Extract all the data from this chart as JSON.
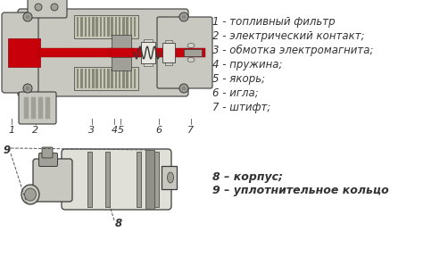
{
  "background_color": "#ffffff",
  "labels_right_top": [
    "1 - топливный фильтр",
    "2 - электрический контакт;",
    "3 - обмотка электромагнита;",
    "4 - пружина;",
    "5 - якорь;",
    "6 - игла;",
    "7 - штифт;"
  ],
  "labels_right_bottom": [
    "8 – корпус;",
    "9 – уплотнительное кольцо"
  ],
  "font_size": 8.5,
  "text_color": "#333333",
  "body_gray": "#c8c8c0",
  "body_gray_dark": "#a0a098",
  "body_gray_light": "#e0e0d8",
  "red_color": "#c8000a",
  "dark_line": "#3a3a3a",
  "inner_gray": "#b0b0a8"
}
